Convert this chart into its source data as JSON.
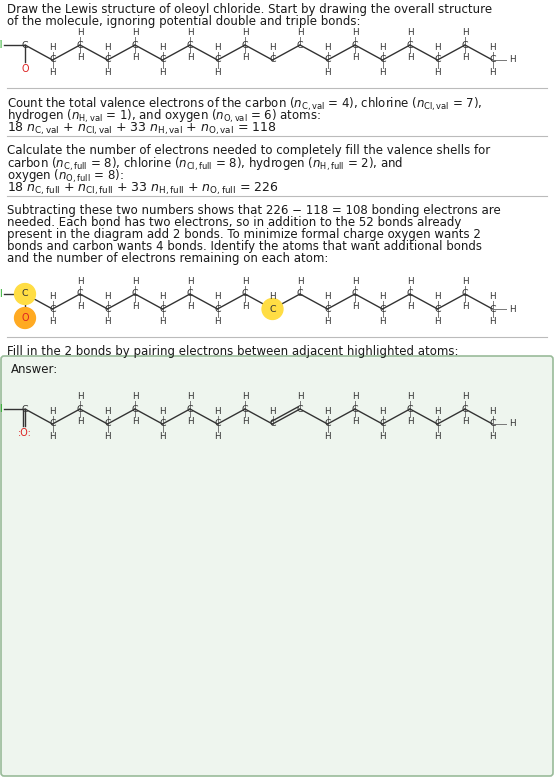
{
  "bg_color": "#ffffff",
  "text_color": "#1a1a1a",
  "cl_color": "#22aa22",
  "o_color": "#dd2222",
  "highlight_c_color": "#ffdd44",
  "highlight_o_color": "#ffaa22",
  "bond_color": "#333333",
  "h_color": "#333333",
  "c_color": "#333333",
  "answer_box_fill": "#eef5ee",
  "answer_box_edge": "#99bb99",
  "sep_color": "#bbbbbb",
  "font_size": 8.5,
  "title_line1": "Draw the Lewis structure of oleoyl chloride. Start by drawing the overall structure",
  "title_line2": "of the molecule, ignoring potential double and triple bonds:",
  "sec2_line1": "Count the total valence electrons of the carbon ($n_{\\mathrm{C,val}}$ = 4), chlorine ($n_{\\mathrm{Cl,val}}$ = 7),",
  "sec2_line2": "hydrogen ($n_{\\mathrm{H,val}}$ = 1), and oxygen ($n_{\\mathrm{O,val}}$ = 6) atoms:",
  "sec2_line3": "18 $n_{\\mathrm{C,val}}$ + $n_{\\mathrm{Cl,val}}$ + 33 $n_{\\mathrm{H,val}}$ + $n_{\\mathrm{O,val}}$ = 118",
  "sec3_line1": "Calculate the number of electrons needed to completely fill the valence shells for",
  "sec3_line2": "carbon ($n_{\\mathrm{C,full}}$ = 8), chlorine ($n_{\\mathrm{Cl,full}}$ = 8), hydrogen ($n_{\\mathrm{H,full}}$ = 2), and",
  "sec3_line3": "oxygen ($n_{\\mathrm{O,full}}$ = 8):",
  "sec3_line4": "18 $n_{\\mathrm{C,full}}$ + $n_{\\mathrm{Cl,full}}$ + 33 $n_{\\mathrm{H,full}}$ + $n_{\\mathrm{O,full}}$ = 226",
  "sec4_line1": "Subtracting these two numbers shows that 226 − 118 = 108 bonding electrons are",
  "sec4_line2": "needed. Each bond has two electrons, so in addition to the 52 bonds already",
  "sec4_line3": "present in the diagram add 2 bonds. To minimize formal charge oxygen wants 2",
  "sec4_line4": "bonds and carbon wants 4 bonds. Identify the atoms that want additional bonds",
  "sec4_line5": "and the number of electrons remaining on each atom:",
  "sec5_line1": "Fill in the 2 bonds by pairing electrons between adjacent highlighted atoms:",
  "answer_label": "Answer:"
}
